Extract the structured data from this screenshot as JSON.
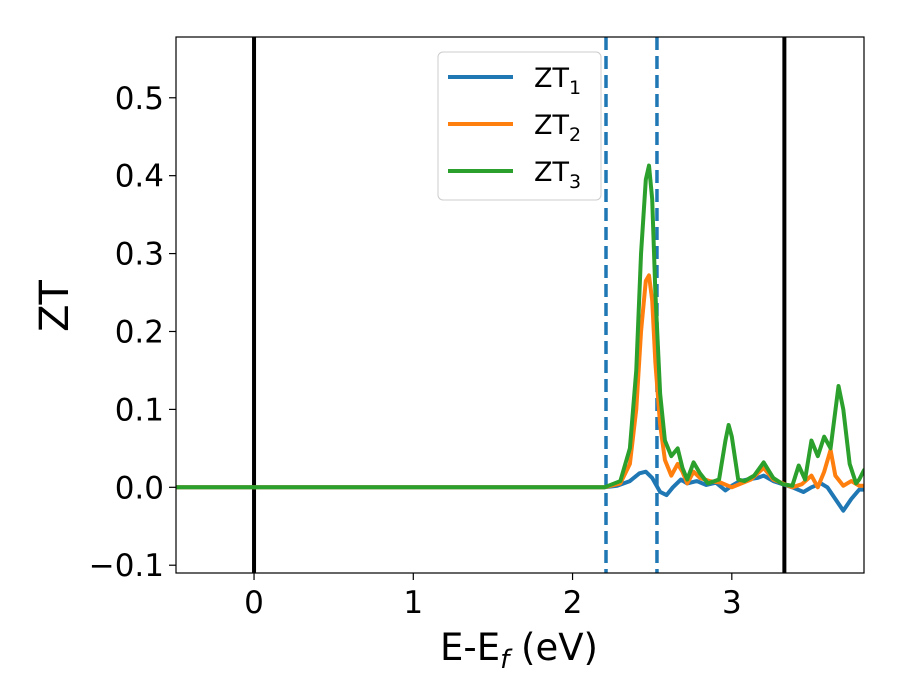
{
  "chart_data": {
    "type": "line",
    "title": "",
    "xlabel": "E-E",
    "xlabel_sub": "f",
    "xlabel_unit": " (eV)",
    "ylabel": "ZT",
    "xlim": [
      -0.49,
      3.83
    ],
    "ylim": [
      -0.11,
      0.578
    ],
    "xticks": [
      0,
      1,
      2,
      3
    ],
    "xtick_labels": [
      "0",
      "1",
      "2",
      "3"
    ],
    "yticks": [
      -0.1,
      0.0,
      0.1,
      0.2,
      0.3,
      0.4,
      0.5
    ],
    "ytick_labels": [
      "−0.1",
      "0.0",
      "0.1",
      "0.2",
      "0.3",
      "0.4",
      "0.5"
    ],
    "grid": false,
    "legend": {
      "placement": "upper-center"
    },
    "vlines": [
      {
        "x": 0.0,
        "style": "solid",
        "color": "#000000"
      },
      {
        "x": 3.33,
        "style": "solid",
        "color": "#000000"
      },
      {
        "x": 2.21,
        "style": "dashed",
        "color": "#1f77b4"
      },
      {
        "x": 2.53,
        "style": "dashed",
        "color": "#1f77b4"
      }
    ],
    "series": [
      {
        "name": "ZT",
        "name_sub": "1",
        "color": "#1f77b4",
        "x": [
          -0.49,
          2.2,
          2.28,
          2.36,
          2.42,
          2.46,
          2.5,
          2.55,
          2.59,
          2.63,
          2.68,
          2.72,
          2.78,
          2.84,
          2.9,
          2.96,
          3.0,
          3.05,
          3.1,
          3.16,
          3.2,
          3.26,
          3.32,
          3.38,
          3.45,
          3.5,
          3.56,
          3.6,
          3.65,
          3.7,
          3.75,
          3.8,
          3.83
        ],
        "values": [
          0.0,
          0.0,
          0.002,
          0.008,
          0.018,
          0.02,
          0.012,
          -0.006,
          -0.01,
          0.0,
          0.01,
          0.005,
          0.008,
          0.003,
          0.006,
          -0.004,
          0.002,
          0.008,
          0.01,
          0.012,
          0.015,
          0.008,
          0.004,
          0.0,
          -0.006,
          0.0,
          0.005,
          0.0,
          -0.015,
          -0.03,
          -0.015,
          -0.003,
          -0.003
        ]
      },
      {
        "name": "ZT",
        "name_sub": "2",
        "color": "#ff7f0e",
        "x": [
          -0.49,
          2.2,
          2.3,
          2.36,
          2.4,
          2.43,
          2.46,
          2.48,
          2.5,
          2.52,
          2.55,
          2.58,
          2.62,
          2.66,
          2.69,
          2.72,
          2.76,
          2.8,
          2.86,
          2.93,
          3.0,
          3.06,
          3.12,
          3.2,
          3.26,
          3.32,
          3.38,
          3.44,
          3.5,
          3.54,
          3.58,
          3.62,
          3.65,
          3.7,
          3.75,
          3.8,
          3.83
        ],
        "values": [
          0.0,
          0.0,
          0.005,
          0.03,
          0.1,
          0.2,
          0.265,
          0.272,
          0.24,
          0.16,
          0.08,
          0.035,
          0.015,
          0.03,
          0.02,
          0.005,
          0.02,
          0.012,
          0.008,
          0.006,
          0.0,
          0.005,
          0.01,
          0.025,
          0.01,
          0.005,
          0.0,
          0.004,
          0.015,
          0.0,
          0.02,
          0.048,
          0.015,
          0.002,
          0.008,
          0.002,
          0.002
        ]
      },
      {
        "name": "ZT",
        "name_sub": "3",
        "color": "#2ca02c",
        "x": [
          -0.49,
          2.2,
          2.3,
          2.36,
          2.4,
          2.43,
          2.46,
          2.48,
          2.5,
          2.52,
          2.55,
          2.58,
          2.62,
          2.66,
          2.69,
          2.72,
          2.76,
          2.8,
          2.85,
          2.92,
          2.96,
          2.98,
          3.0,
          3.04,
          3.08,
          3.14,
          3.2,
          3.26,
          3.32,
          3.38,
          3.42,
          3.46,
          3.5,
          3.54,
          3.58,
          3.62,
          3.67,
          3.7,
          3.74,
          3.78,
          3.8,
          3.83
        ],
        "values": [
          0.0,
          0.0,
          0.008,
          0.05,
          0.15,
          0.3,
          0.395,
          0.413,
          0.37,
          0.25,
          0.12,
          0.06,
          0.04,
          0.05,
          0.025,
          0.01,
          0.032,
          0.018,
          0.005,
          0.01,
          0.06,
          0.08,
          0.065,
          0.01,
          0.008,
          0.015,
          0.032,
          0.012,
          0.004,
          0.002,
          0.028,
          0.01,
          0.06,
          0.04,
          0.065,
          0.05,
          0.13,
          0.1,
          0.03,
          0.005,
          0.01,
          0.022
        ]
      }
    ]
  }
}
